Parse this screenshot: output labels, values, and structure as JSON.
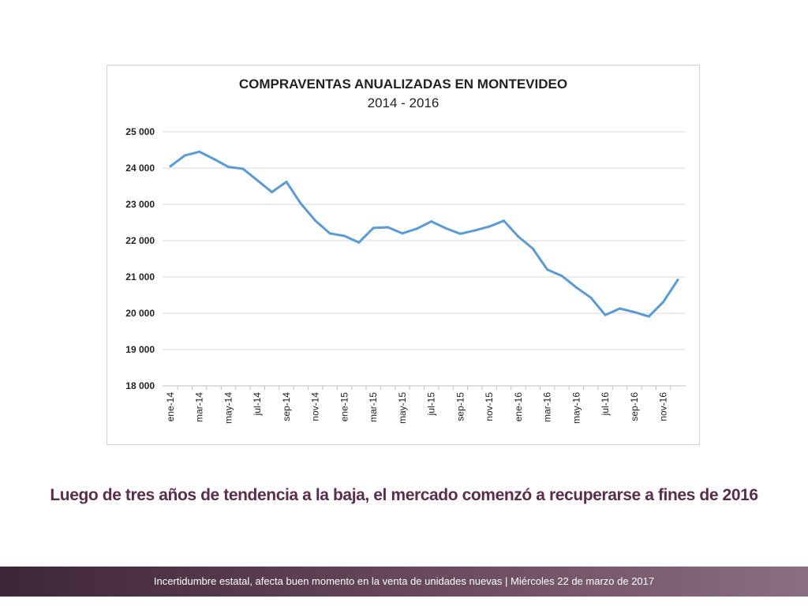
{
  "chart_data": {
    "type": "line",
    "title": "COMPRAVENTAS ANUALIZADAS EN MONTEVIDEO",
    "subtitle": "2014 - 2016",
    "ylim": [
      18000,
      25000
    ],
    "yticks": [
      18000,
      19000,
      20000,
      21000,
      22000,
      23000,
      24000,
      25000
    ],
    "ytick_labels": [
      "18 000",
      "19 000",
      "20 000",
      "21 000",
      "22 000",
      "23 000",
      "24 000",
      "25 000"
    ],
    "xtick_labels": [
      "ene-14",
      "mar-14",
      "may-14",
      "jul-14",
      "sep-14",
      "nov-14",
      "ene-15",
      "mar-15",
      "may-15",
      "jul-15",
      "sep-15",
      "nov-15",
      "ene-16",
      "mar-16",
      "may-16",
      "jul-16",
      "sep-16",
      "nov-16"
    ],
    "grid": true,
    "color": "#5b9bd5",
    "series": [
      {
        "values": [
          24050,
          24350,
          24450,
          24250,
          24030,
          23980,
          23660,
          23340,
          23620,
          23020,
          22550,
          22200,
          22130,
          21950,
          22350,
          22370,
          22200,
          22330,
          22530,
          22340,
          22190,
          22280,
          22390,
          22550,
          22110,
          21780,
          21200,
          21030,
          20710,
          20430,
          19950,
          20130,
          20030,
          19910,
          20310,
          20920
        ]
      }
    ]
  },
  "caption": "Luego de tres años de tendencia a la baja, el mercado comenzó a recuperarse a fines de 2016",
  "footer": {
    "text": "Incertidumbre estatal, afecta buen momento en la venta de unidades nuevas | Miércoles 22 de marzo de 2017"
  }
}
